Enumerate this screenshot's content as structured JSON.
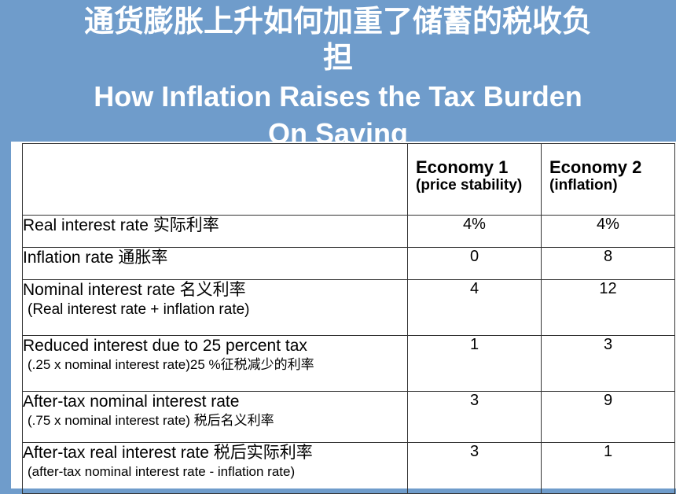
{
  "title": {
    "cn_line1": "通货膨胀上升如何加重了储蓄的税收负",
    "cn_line2": "担",
    "en_line1": "How Inflation Raises the Tax Burden",
    "en_line2": "On Saving"
  },
  "table": {
    "columns": [
      {
        "name": "Economy 1",
        "sub": "(price stability)"
      },
      {
        "name": "Economy 2",
        "sub": "(inflation)"
      }
    ],
    "rows": [
      {
        "label": "Real interest rate 实际利率",
        "sub": "",
        "values": [
          "4%",
          "4%"
        ]
      },
      {
        "label": "Inflation rate 通胀率",
        "sub": "",
        "values": [
          "0",
          "8"
        ]
      },
      {
        "label": "Nominal interest rate 名义利率",
        "sub": "(Real interest rate + inflation rate)",
        "values": [
          "4",
          "12"
        ]
      },
      {
        "label": "Reduced interest due to 25 percent tax",
        "sub": "(.25 x nominal interest rate)25 %征税减少的利率",
        "values": [
          "1",
          "3"
        ]
      },
      {
        "label": "After-tax nominal interest rate",
        "sub": "(.75 x nominal interest rate) 税后名义利率",
        "values": [
          "3",
          "9"
        ]
      },
      {
        "label": "After-tax real interest rate 税后实际利率",
        "sub": "(after-tax nominal interest rate - inflation rate)",
        "values": [
          "3",
          "1"
        ]
      }
    ]
  }
}
